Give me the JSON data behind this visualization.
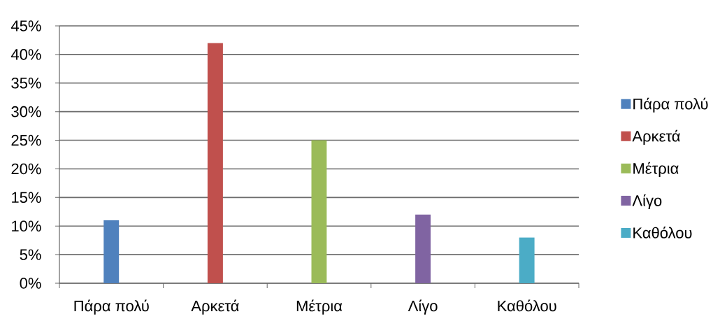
{
  "chart_data": {
    "type": "bar",
    "categories": [
      "Πάρα πολύ",
      "Αρκετά",
      "Μέτρια",
      "Λίγο",
      "Καθόλου"
    ],
    "series": [
      {
        "name": "Πάρα πολύ",
        "color": "#4f81bd",
        "values": [
          11,
          null,
          null,
          null,
          null
        ]
      },
      {
        "name": "Αρκετά",
        "color": "#c0504d",
        "values": [
          null,
          42,
          null,
          null,
          null
        ]
      },
      {
        "name": "Μέτρια",
        "color": "#9bbb59",
        "values": [
          null,
          null,
          25,
          null,
          null
        ]
      },
      {
        "name": "Λίγο",
        "color": "#8064a2",
        "values": [
          null,
          null,
          null,
          12,
          null
        ]
      },
      {
        "name": "Καθόλου",
        "color": "#4bacc6",
        "values": [
          null,
          null,
          null,
          null,
          8
        ]
      }
    ],
    "ylim": [
      0,
      45
    ],
    "yticks": [
      {
        "value": 0,
        "label": "0%"
      },
      {
        "value": 5,
        "label": "5%"
      },
      {
        "value": 10,
        "label": "10%"
      },
      {
        "value": 15,
        "label": "15%"
      },
      {
        "value": 20,
        "label": "20%"
      },
      {
        "value": 25,
        "label": "25%"
      },
      {
        "value": 30,
        "label": "30%"
      },
      {
        "value": 35,
        "label": "35%"
      },
      {
        "value": 40,
        "label": "40%"
      },
      {
        "value": 45,
        "label": "45%"
      }
    ],
    "grid": "y",
    "legend": "right"
  }
}
